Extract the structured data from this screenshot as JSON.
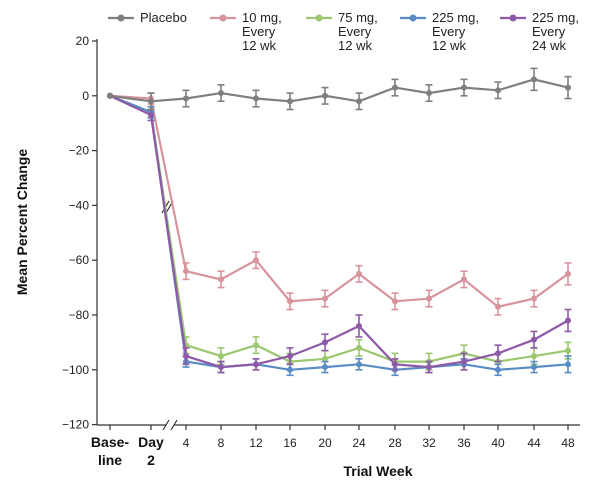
{
  "chart_data": {
    "type": "line",
    "xlabel": "Trial Week",
    "ylabel": "Mean Percent Change",
    "ylim": [
      -120,
      20
    ],
    "yticks": [
      20,
      0,
      -20,
      -40,
      -60,
      -80,
      -100,
      -120
    ],
    "x_categories": [
      "Base-line",
      "Day 2",
      "4",
      "8",
      "12",
      "16",
      "20",
      "24",
      "28",
      "32",
      "36",
      "40",
      "44",
      "48"
    ],
    "x_tick_labels": [
      {
        "lines": [
          "Base-",
          "line"
        ],
        "bold": true
      },
      {
        "lines": [
          "Day",
          "2"
        ],
        "bold": true
      },
      {
        "lines": [
          "4"
        ],
        "bold": false
      },
      {
        "lines": [
          "8"
        ],
        "bold": false
      },
      {
        "lines": [
          "12"
        ],
        "bold": false
      },
      {
        "lines": [
          "16"
        ],
        "bold": false
      },
      {
        "lines": [
          "20"
        ],
        "bold": false
      },
      {
        "lines": [
          "24"
        ],
        "bold": false
      },
      {
        "lines": [
          "28"
        ],
        "bold": false
      },
      {
        "lines": [
          "32"
        ],
        "bold": false
      },
      {
        "lines": [
          "36"
        ],
        "bold": false
      },
      {
        "lines": [
          "40"
        ],
        "bold": false
      },
      {
        "lines": [
          "44"
        ],
        "bold": false
      },
      {
        "lines": [
          "48"
        ],
        "bold": false
      }
    ],
    "axis_break": true,
    "legend_position": "top",
    "series": [
      {
        "name": "Placebo",
        "legend_lines": [
          "Placebo"
        ],
        "color": "#7f7f7f",
        "values": [
          0,
          -2,
          -1,
          1,
          -1,
          -2,
          0,
          -2,
          3,
          1,
          3,
          2,
          6,
          3
        ],
        "err": [
          0,
          3,
          3,
          3,
          3,
          3,
          3,
          3,
          3,
          3,
          3,
          3,
          4,
          4
        ]
      },
      {
        "name": "10 mg, Every 12 wk",
        "legend_lines": [
          "10 mg,",
          "Every",
          "12 wk"
        ],
        "color": "#d8949c",
        "values": [
          0,
          -1,
          -64,
          -67,
          -60,
          -75,
          -74,
          -65,
          -75,
          -74,
          -67,
          -77,
          -74,
          -65
        ],
        "err": [
          0,
          2,
          3,
          3,
          3,
          3,
          3,
          3,
          3,
          3,
          3,
          3,
          3,
          4
        ]
      },
      {
        "name": "75 mg, Every 12 wk",
        "legend_lines": [
          "75 mg,",
          "Every",
          "12 wk"
        ],
        "color": "#9bc770",
        "values": [
          0,
          -6,
          -91,
          -95,
          -91,
          -97,
          -96,
          -92,
          -97,
          -97,
          -94,
          -97,
          -95,
          -93
        ],
        "err": [
          0,
          2,
          3,
          3,
          3,
          3,
          3,
          3,
          3,
          3,
          3,
          3,
          3,
          3
        ]
      },
      {
        "name": "225 mg, Every 12 wk",
        "legend_lines": [
          "225 mg,",
          "Every",
          "12 wk"
        ],
        "color": "#5a8cc4",
        "values": [
          0,
          -6,
          -97,
          -99,
          -98,
          -100,
          -99,
          -98,
          -100,
          -99,
          -98,
          -100,
          -99,
          -98
        ],
        "err": [
          0,
          2,
          2,
          2,
          2,
          2,
          2,
          2,
          2,
          2,
          2,
          2,
          2,
          3
        ]
      },
      {
        "name": "225 mg, Every 24 wk",
        "legend_lines": [
          "225 mg,",
          "Every",
          "24 wk"
        ],
        "color": "#8e5aa8",
        "values": [
          0,
          -7,
          -95,
          -99,
          -98,
          -95,
          -90,
          -84,
          -98,
          -99,
          -97,
          -94,
          -89,
          -82
        ],
        "err": [
          0,
          2,
          3,
          2,
          2,
          3,
          3,
          4,
          2,
          2,
          3,
          3,
          3,
          4
        ]
      }
    ]
  }
}
